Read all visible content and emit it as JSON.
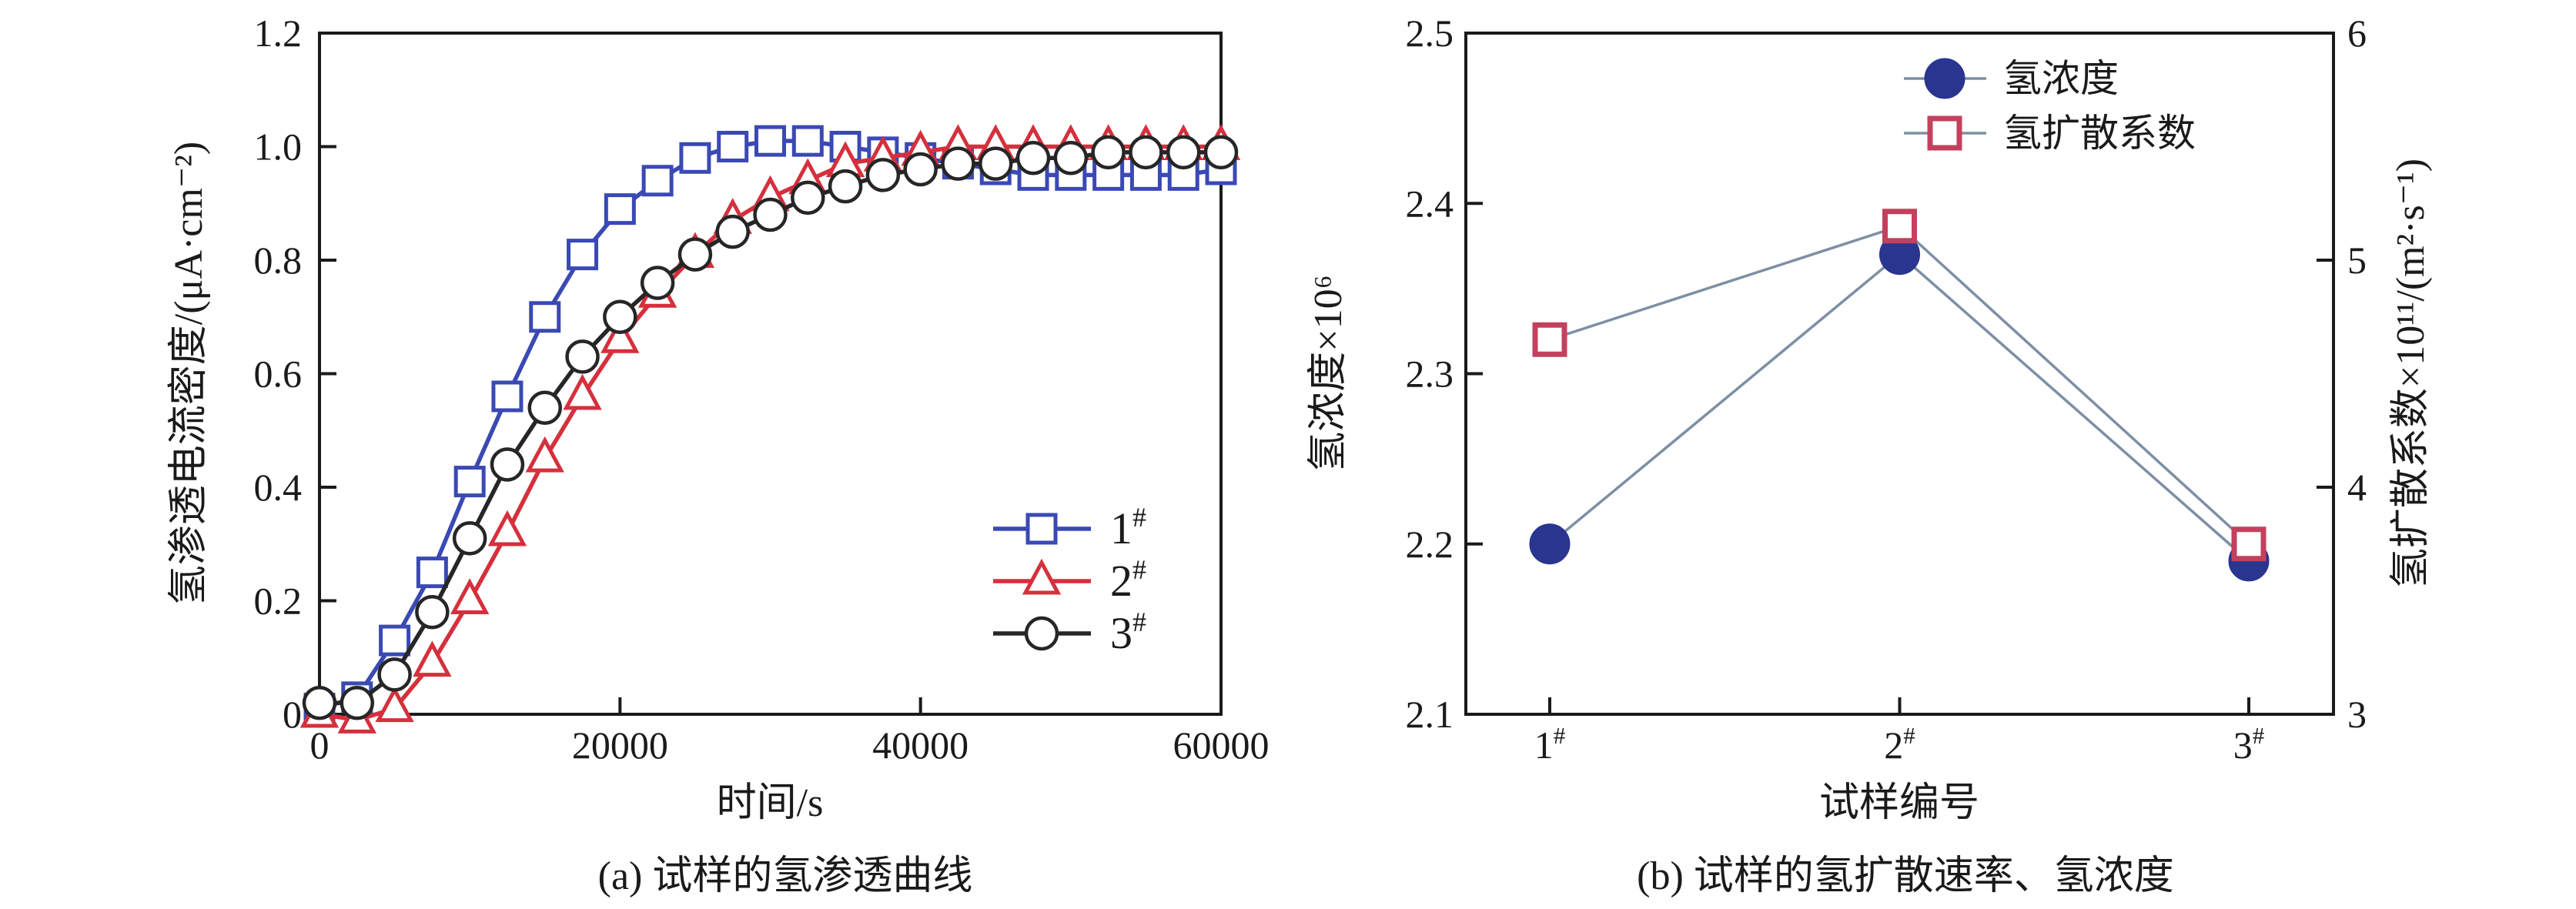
{
  "figure": {
    "background": "#ffffff",
    "axis_color": "#1a1a1a",
    "caption_a": "(a) 试样的氢渗透曲线",
    "caption_b": "(b) 试样的氢扩散速率、氢浓度"
  },
  "chart_data": [
    {
      "id": "hydrogen-permeation-curves",
      "type": "line",
      "title": "",
      "xlabel": "时间/s",
      "ylabel": "氢渗透电流密度/(μA·cm⁻²)",
      "xlim": [
        0,
        60000
      ],
      "ylim": [
        0,
        1.2
      ],
      "xticks": [
        0,
        20000,
        40000,
        60000
      ],
      "xtick_labels": [
        "0",
        "20000",
        "40000",
        "60000"
      ],
      "yticks": [
        0,
        0.2,
        0.4,
        0.6,
        0.8,
        1.0,
        1.2
      ],
      "ytick_labels": [
        "0",
        "0.2",
        "0.4",
        "0.6",
        "0.8",
        "1.0",
        "1.2"
      ],
      "grid": false,
      "legend_position": "lower-right-inside",
      "x": [
        0,
        2500,
        5000,
        7500,
        10000,
        12500,
        15000,
        17500,
        20000,
        22500,
        25000,
        27500,
        30000,
        32500,
        35000,
        37500,
        40000,
        42500,
        45000,
        47500,
        50000,
        52500,
        55000,
        57500,
        60000
      ],
      "series": [
        {
          "name": "1#",
          "legend_label": "1#",
          "color": "#3a49b4",
          "marker": "square",
          "marker_fill": "#ffffff",
          "values": [
            0.01,
            0.03,
            0.13,
            0.25,
            0.41,
            0.56,
            0.7,
            0.81,
            0.89,
            0.94,
            0.98,
            1.0,
            1.01,
            1.01,
            1.0,
            0.99,
            0.98,
            0.97,
            0.96,
            0.95,
            0.95,
            0.95,
            0.95,
            0.95,
            0.96
          ]
        },
        {
          "name": "2#",
          "legend_label": "2#",
          "color": "#d5303c",
          "marker": "triangle",
          "marker_fill": "#ffffff",
          "values": [
            0.0,
            -0.01,
            0.01,
            0.09,
            0.2,
            0.32,
            0.45,
            0.56,
            0.66,
            0.74,
            0.81,
            0.87,
            0.91,
            0.94,
            0.97,
            0.98,
            0.99,
            1.0,
            1.0,
            1.0,
            1.0,
            1.0,
            1.0,
            1.0,
            1.0
          ]
        },
        {
          "name": "3#",
          "legend_label": "3#",
          "color": "#262626",
          "marker": "circle",
          "marker_fill": "#ffffff",
          "values": [
            0.02,
            0.02,
            0.07,
            0.18,
            0.31,
            0.44,
            0.54,
            0.63,
            0.7,
            0.76,
            0.81,
            0.85,
            0.88,
            0.91,
            0.93,
            0.95,
            0.96,
            0.97,
            0.97,
            0.98,
            0.98,
            0.99,
            0.99,
            0.99,
            0.99
          ]
        }
      ]
    },
    {
      "id": "diffusion-rate-and-concentration",
      "type": "line",
      "title": "",
      "xlabel": "试样编号",
      "ylabel_left": "氢浓度×10⁶",
      "ylabel_right": "氢扩散系数×10¹¹/(m²·s⁻¹)",
      "categories": [
        "1#",
        "2#",
        "3#"
      ],
      "ylim_left": [
        2.1,
        2.5
      ],
      "yticks_left": [
        2.1,
        2.2,
        2.3,
        2.4,
        2.5
      ],
      "ytick_labels_left": [
        "2.1",
        "2.2",
        "2.3",
        "2.4",
        "2.5"
      ],
      "ylim_right": [
        3,
        6
      ],
      "yticks_right": [
        3,
        4,
        5,
        6
      ],
      "ytick_labels_right": [
        "3",
        "4",
        "5",
        "6"
      ],
      "grid": false,
      "legend_position": "upper-right-inside",
      "connector_color": "#7d8fa4",
      "series": [
        {
          "name": "氢浓度",
          "axis": "left",
          "marker": "filled-circle",
          "marker_color": "#2a3590",
          "values": [
            2.2,
            2.37,
            2.19
          ]
        },
        {
          "name": "氢扩散系数",
          "axis": "right",
          "marker": "open-square",
          "marker_color": "#c2415c",
          "values": [
            4.65,
            5.15,
            3.75
          ]
        }
      ]
    }
  ]
}
